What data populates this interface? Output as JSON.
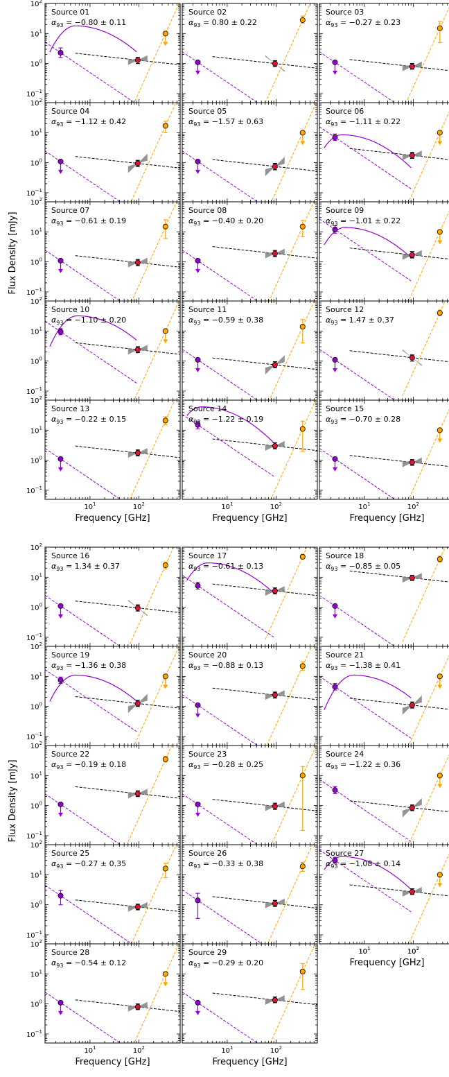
{
  "figure": {
    "ylabel": "Flux Density [mJy]",
    "xlabel": "Frequency [GHz]",
    "source_prefix": "Source",
    "alpha_symbol": "α",
    "alpha_subscript": "93"
  },
  "colors": {
    "radio": "#9400d3",
    "submm": "#ffa500",
    "alma": "#dc143c",
    "fit": "#000000",
    "bowtie": "#808080"
  },
  "axes": {
    "x": {
      "scale": "log",
      "range": [
        1.2,
        700
      ],
      "tick_labels": [
        "10^1",
        "10^2"
      ]
    },
    "y": {
      "scale": "log",
      "range": [
        0.05,
        100
      ],
      "tick_labels": [
        "10^-1",
        "10^0",
        "10^1",
        "10^2"
      ]
    }
  },
  "chart_data": [
    {
      "type": "scatter",
      "id": "01",
      "alpha": "−0.80 ± 0.11",
      "radio": {
        "y": 2.3,
        "lo": 1.6,
        "hi": 3.3
      },
      "alma": {
        "y": 1.3,
        "lo": 1.0,
        "hi": 1.6
      },
      "submm": {
        "y": 10,
        "limit": true
      },
      "peaked": {
        "peak_x": 5,
        "peak_y": 18
      },
      "bowtie": "gentle"
    },
    {
      "type": "scatter",
      "id": "02",
      "alpha": "0.80 ± 0.22",
      "radio": {
        "y": 1.1,
        "limit": true
      },
      "alma": {
        "y": 1.0,
        "lo": 0.8,
        "hi": 1.25
      },
      "submm": {
        "y": 28,
        "lo": 22,
        "hi": 38
      },
      "bowtie": "steep-pos"
    },
    {
      "type": "scatter",
      "id": "03",
      "alpha": "−0.27 ± 0.23",
      "radio": {
        "y": 1.1,
        "limit": true
      },
      "alma": {
        "y": 0.8,
        "lo": 0.65,
        "hi": 1.0
      },
      "submm": {
        "y": 15,
        "lo": 5,
        "hi": 25
      },
      "bowtie": "gentle"
    },
    {
      "type": "scatter",
      "id": "04",
      "alpha": "−1.12 ± 0.42",
      "radio": {
        "y": 1.1,
        "limit": true
      },
      "alma": {
        "y": 0.95,
        "lo": 0.75,
        "hi": 1.2
      },
      "submm": {
        "y": 17,
        "lo": 10,
        "hi": 24
      },
      "bowtie": "steep-neg"
    },
    {
      "type": "scatter",
      "id": "05",
      "alpha": "−1.57 ± 0.63",
      "radio": {
        "y": 1.1,
        "limit": true
      },
      "alma": {
        "y": 0.75,
        "lo": 0.58,
        "hi": 0.95
      },
      "submm": {
        "y": 10,
        "limit": true
      },
      "bowtie": "steep-neg"
    },
    {
      "type": "scatter",
      "id": "06",
      "alpha": "−1.11 ± 0.22",
      "radio": {
        "y": 7.0,
        "lo": 5.5,
        "hi": 9.0
      },
      "alma": {
        "y": 1.75,
        "lo": 1.4,
        "hi": 2.2
      },
      "submm": {
        "y": 10,
        "limit": true
      },
      "peaked": {
        "peak_x": 3.5,
        "peak_y": 8.5
      },
      "bowtie": "gentle"
    },
    {
      "type": "scatter",
      "id": "07",
      "alpha": "−0.61 ± 0.19",
      "radio": {
        "y": 1.1,
        "limit": true
      },
      "alma": {
        "y": 0.95,
        "lo": 0.75,
        "hi": 1.2
      },
      "submm": {
        "y": 15,
        "lo": 6,
        "hi": 25
      },
      "bowtie": "gentle"
    },
    {
      "type": "scatter",
      "id": "08",
      "alpha": "−0.40 ± 0.20",
      "radio": {
        "y": 1.1,
        "limit": true
      },
      "alma": {
        "y": 1.9,
        "lo": 1.5,
        "hi": 2.4
      },
      "submm": {
        "y": 15,
        "lo": 7,
        "hi": 24
      },
      "bowtie": "gentle"
    },
    {
      "type": "scatter",
      "id": "09",
      "alpha": "−1.01 ± 0.22",
      "radio": {
        "y": 12,
        "lo": 9,
        "hi": 16
      },
      "alma": {
        "y": 1.7,
        "lo": 1.35,
        "hi": 2.2
      },
      "submm": {
        "y": 10,
        "limit": true
      },
      "peaked": {
        "peak_x": 4,
        "peak_y": 14
      },
      "bowtie": "gentle"
    },
    {
      "type": "scatter",
      "id": "10",
      "alpha": "−1.10 ± 0.20",
      "radio": {
        "y": 9.5,
        "lo": 7.5,
        "hi": 12
      },
      "alma": {
        "y": 2.4,
        "lo": 1.9,
        "hi": 3.0
      },
      "submm": {
        "y": 10,
        "limit": true
      },
      "peaked": {
        "peak_x": 5.5,
        "peak_y": 32
      },
      "bowtie": "gentle"
    },
    {
      "type": "scatter",
      "id": "11",
      "alpha": "−0.59 ± 0.38",
      "radio": {
        "y": 1.1,
        "limit": true
      },
      "alma": {
        "y": 0.75,
        "lo": 0.6,
        "hi": 0.95
      },
      "submm": {
        "y": 14,
        "lo": 4,
        "hi": 24
      },
      "bowtie": "steep-neg"
    },
    {
      "type": "scatter",
      "id": "12",
      "alpha": "1.47 ± 0.37",
      "radio": {
        "y": 1.1,
        "limit": true
      },
      "alma": {
        "y": 1.3,
        "lo": 1.0,
        "hi": 1.6
      },
      "submm": {
        "y": 40,
        "lo": 32,
        "hi": 50
      },
      "bowtie": "steep-pos"
    },
    {
      "type": "scatter",
      "id": "13",
      "alpha": "−0.22 ± 0.15",
      "radio": {
        "y": 1.1,
        "limit": true
      },
      "alma": {
        "y": 1.75,
        "lo": 1.4,
        "hi": 2.2
      },
      "submm": {
        "y": 21,
        "lo": 15,
        "hi": 28
      },
      "bowtie": "gentle"
    },
    {
      "type": "scatter",
      "id": "14",
      "alpha": "−1.22 ± 0.19",
      "radio": {
        "y": 15,
        "lo": 11,
        "hi": 20
      },
      "alma": {
        "y": 3.0,
        "lo": 2.4,
        "hi": 3.8
      },
      "submm": {
        "y": 11,
        "lo": 2,
        "hi": 20
      },
      "peaked": {
        "peak_x": 3,
        "peak_y": 60
      },
      "bowtie": "gentle"
    },
    {
      "type": "scatter",
      "id": "15",
      "alpha": "−0.70 ± 0.28",
      "radio": {
        "y": 1.1,
        "limit": true
      },
      "alma": {
        "y": 0.85,
        "lo": 0.68,
        "hi": 1.05
      },
      "submm": {
        "y": 10,
        "limit": true
      },
      "bowtie": "gentle"
    },
    {
      "type": "scatter",
      "id": "16",
      "alpha": "1.34 ± 0.37",
      "radio": {
        "y": 1.1,
        "limit": true
      },
      "alma": {
        "y": 0.95,
        "lo": 0.75,
        "hi": 1.2
      },
      "submm": {
        "y": 25,
        "lo": 19,
        "hi": 32
      },
      "bowtie": "steep-pos"
    },
    {
      "type": "scatter",
      "id": "17",
      "alpha": "−0.61 ± 0.13",
      "radio": {
        "y": 5.2,
        "lo": 4.0,
        "hi": 6.8
      },
      "alma": {
        "y": 3.5,
        "lo": 2.8,
        "hi": 4.4
      },
      "submm": {
        "y": 48,
        "lo": 40,
        "hi": 58
      },
      "peaked": {
        "peak_x": 4,
        "peak_y": 30
      },
      "bowtie": "gentle"
    },
    {
      "type": "scatter",
      "id": "18",
      "alpha": "−0.85 ± 0.05",
      "radio": {
        "y": 1.1,
        "limit": true
      },
      "alma": {
        "y": 9.5,
        "lo": 7.8,
        "hi": 11.5
      },
      "submm": {
        "y": 40,
        "lo": 32,
        "hi": 50
      },
      "bowtie": "gentle"
    },
    {
      "type": "scatter",
      "id": "19",
      "alpha": "−1.36 ± 0.38",
      "radio": {
        "y": 7.5,
        "lo": 5.8,
        "hi": 9.5
      },
      "alma": {
        "y": 1.25,
        "lo": 1.0,
        "hi": 1.6
      },
      "submm": {
        "y": 10,
        "limit": true
      },
      "peaked": {
        "peak_x": 5,
        "peak_y": 11
      },
      "bowtie": "steep-neg"
    },
    {
      "type": "scatter",
      "id": "20",
      "alpha": "−0.88 ± 0.13",
      "radio": {
        "y": 1.1,
        "limit": true
      },
      "alma": {
        "y": 2.4,
        "lo": 1.9,
        "hi": 3.0
      },
      "submm": {
        "y": 22,
        "lo": 16,
        "hi": 30
      },
      "bowtie": "gentle"
    },
    {
      "type": "scatter",
      "id": "21",
      "alpha": "−1.38 ± 0.41",
      "radio": {
        "y": 4.5,
        "lo": 3.5,
        "hi": 5.8
      },
      "alma": {
        "y": 1.1,
        "lo": 0.88,
        "hi": 1.4
      },
      "submm": {
        "y": 10,
        "limit": true
      },
      "peaked": {
        "peak_x": 6,
        "peak_y": 11
      },
      "bowtie": "steep-neg"
    },
    {
      "type": "scatter",
      "id": "22",
      "alpha": "−0.19 ± 0.18",
      "radio": {
        "y": 1.1,
        "limit": true
      },
      "alma": {
        "y": 2.5,
        "lo": 2.0,
        "hi": 3.1
      },
      "submm": {
        "y": 35,
        "lo": 28,
        "hi": 44
      },
      "bowtie": "gentle"
    },
    {
      "type": "scatter",
      "id": "23",
      "alpha": "−0.28 ± 0.25",
      "radio": {
        "y": 1.1,
        "limit": true
      },
      "alma": {
        "y": 0.95,
        "lo": 0.75,
        "hi": 1.2
      },
      "submm": {
        "y": 10,
        "lo": 0.15,
        "hi": 20
      },
      "bowtie": "gentle"
    },
    {
      "type": "scatter",
      "id": "24",
      "alpha": "−1.22 ± 0.36",
      "radio": {
        "y": 3.3,
        "lo": 2.5,
        "hi": 4.3
      },
      "alma": {
        "y": 0.85,
        "lo": 0.68,
        "hi": 1.05
      },
      "submm": {
        "y": 10,
        "limit": true
      },
      "bowtie": "steep-neg"
    },
    {
      "type": "scatter",
      "id": "25",
      "alpha": "−0.27 ± 0.35",
      "radio": {
        "y": 2.0,
        "lo": 1.0,
        "hi": 3.0
      },
      "alma": {
        "y": 0.85,
        "lo": 0.68,
        "hi": 1.05
      },
      "submm": {
        "y": 16,
        "lo": 8,
        "hi": 24
      },
      "bowtie": "gentle"
    },
    {
      "type": "scatter",
      "id": "26",
      "alpha": "−0.33 ± 0.38",
      "radio": {
        "y": 1.4,
        "lo": 0.35,
        "hi": 2.4
      },
      "alma": {
        "y": 1.1,
        "lo": 0.88,
        "hi": 1.4
      },
      "submm": {
        "y": 19,
        "lo": 13,
        "hi": 26
      },
      "bowtie": "gentle"
    },
    {
      "type": "scatter",
      "id": "27",
      "alpha": "−1.08 ± 0.14",
      "radio": {
        "y": 30,
        "lo": 24,
        "hi": 38
      },
      "alma": {
        "y": 2.7,
        "lo": 2.2,
        "hi": 3.4
      },
      "submm": {
        "y": 10,
        "limit": true
      },
      "peaked": {
        "peak_x": 3.5,
        "peak_y": 40
      },
      "bowtie": "gentle"
    },
    {
      "type": "scatter",
      "id": "28",
      "alpha": "−0.54 ± 0.12",
      "radio": {
        "y": 1.1,
        "limit": true
      },
      "alma": {
        "y": 0.8,
        "lo": 0.65,
        "hi": 1.0
      },
      "submm": {
        "y": 10,
        "limit": true
      },
      "bowtie": "gentle"
    },
    {
      "type": "scatter",
      "id": "29",
      "alpha": "−0.29 ± 0.20",
      "radio": {
        "y": 1.1,
        "limit": true
      },
      "alma": {
        "y": 1.35,
        "lo": 1.1,
        "hi": 1.7
      },
      "submm": {
        "y": 12,
        "lo": 3,
        "hi": 22
      },
      "bowtie": "gentle"
    }
  ]
}
